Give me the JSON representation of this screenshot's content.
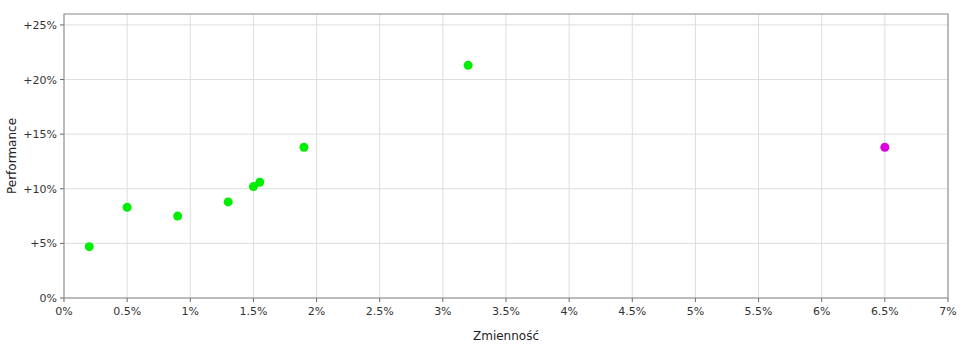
{
  "chart_data": {
    "type": "scatter",
    "xlabel": "Zmienność",
    "ylabel": "Performance",
    "xlim": [
      0,
      0.07
    ],
    "ylim": [
      0,
      0.26
    ],
    "xticks": [
      {
        "value": 0,
        "label": "0%"
      },
      {
        "value": 0.005,
        "label": "0.5%"
      },
      {
        "value": 0.01,
        "label": "1%"
      },
      {
        "value": 0.015,
        "label": "1.5%"
      },
      {
        "value": 0.02,
        "label": "2%"
      },
      {
        "value": 0.025,
        "label": "2.5%"
      },
      {
        "value": 0.03,
        "label": "3%"
      },
      {
        "value": 0.035,
        "label": "3.5%"
      },
      {
        "value": 0.04,
        "label": "4%"
      },
      {
        "value": 0.045,
        "label": "4.5%"
      },
      {
        "value": 0.05,
        "label": "5%"
      },
      {
        "value": 0.055,
        "label": "5.5%"
      },
      {
        "value": 0.06,
        "label": "6%"
      },
      {
        "value": 0.065,
        "label": "6.5%"
      },
      {
        "value": 0.07,
        "label": "7%"
      }
    ],
    "yticks": [
      {
        "value": 0,
        "label": "0%"
      },
      {
        "value": 0.05,
        "label": "+5%"
      },
      {
        "value": 0.1,
        "label": "+10%"
      },
      {
        "value": 0.15,
        "label": "+15%"
      },
      {
        "value": 0.2,
        "label": "+20%"
      },
      {
        "value": 0.25,
        "label": "+25%"
      }
    ],
    "grid": true,
    "series": [
      {
        "color": "#00ee00",
        "x": [
          0.002,
          0.005,
          0.009,
          0.013,
          0.015,
          0.0155,
          0.019,
          0.032
        ],
        "values": [
          0.047,
          0.083,
          0.075,
          0.088,
          0.102,
          0.106,
          0.138,
          0.213
        ]
      },
      {
        "color": "#dd00dd",
        "x": [
          0.065
        ],
        "values": [
          0.138
        ]
      }
    ]
  }
}
